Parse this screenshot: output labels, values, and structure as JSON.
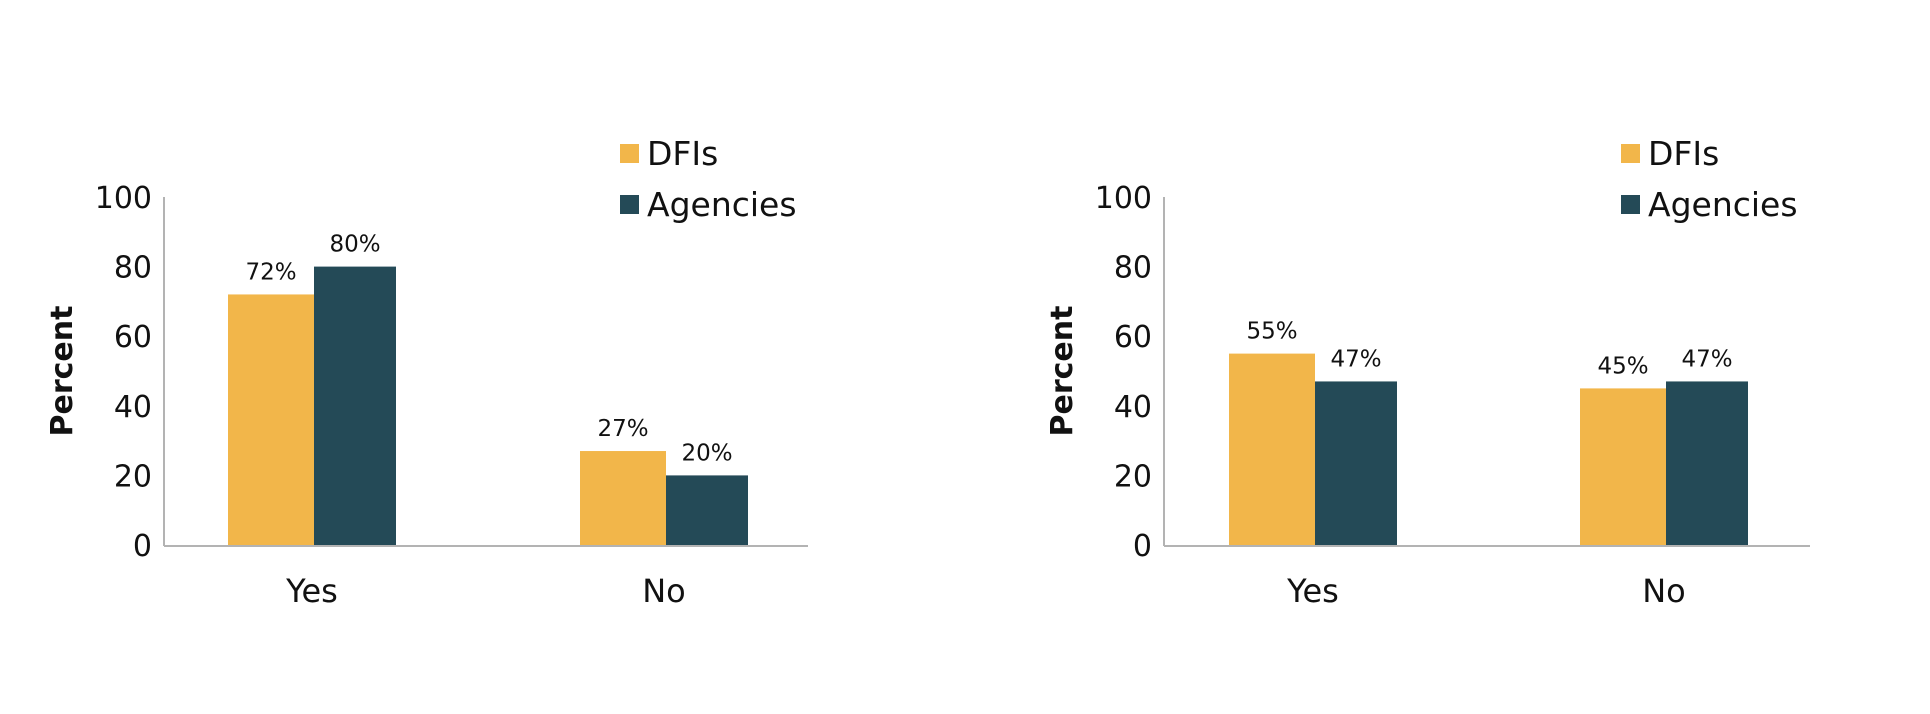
{
  "chart_data": [
    {
      "type": "bar",
      "categories": [
        "Yes",
        "No"
      ],
      "series": [
        {
          "name": "DFIs",
          "values": [
            72,
            27
          ],
          "labels": [
            "72%",
            "27%"
          ]
        },
        {
          "name": "Agencies",
          "values": [
            80,
            20
          ],
          "labels": [
            "80%",
            "20%"
          ]
        }
      ],
      "ylabel": "Percent",
      "ylim": [
        0,
        100
      ],
      "yticks": [
        0,
        20,
        40,
        60,
        80,
        100
      ],
      "grid": false,
      "legend": "top-right"
    },
    {
      "type": "bar",
      "categories": [
        "Yes",
        "No"
      ],
      "series": [
        {
          "name": "DFIs",
          "values": [
            55,
            45
          ],
          "labels": [
            "55%",
            "45%"
          ]
        },
        {
          "name": "Agencies",
          "values": [
            47,
            47
          ],
          "labels": [
            "47%",
            "47%"
          ]
        }
      ],
      "ylabel": "Percent",
      "ylim": [
        0,
        100
      ],
      "yticks": [
        0,
        20,
        40,
        60,
        80,
        100
      ],
      "grid": false,
      "legend": "top-right"
    }
  ],
  "colors": {
    "DFIs": "#f2b64a",
    "Agencies": "#244a57"
  }
}
